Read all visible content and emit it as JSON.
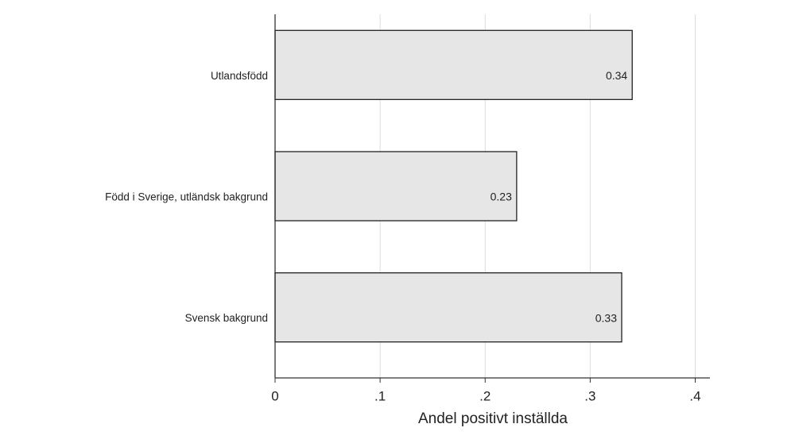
{
  "chart_data": {
    "type": "barh",
    "categories": [
      "Utlandsfödd",
      "Född i Sverige, utländsk bakgrund",
      "Svensk bakgrund"
    ],
    "values": [
      0.34,
      0.23,
      0.33
    ],
    "color": "#e6e6e6",
    "xlabel": "Andel positivt inställda",
    "xlim": [
      0,
      0.414
    ],
    "xticks": [
      0,
      {
        "value": 0.1,
        "label": ".1"
      },
      {
        "value": 0.2,
        "label": ".2"
      },
      {
        "value": 0.3,
        "label": ".3"
      },
      {
        "value": 0.4,
        "label": ".4"
      }
    ],
    "grid": true
  }
}
